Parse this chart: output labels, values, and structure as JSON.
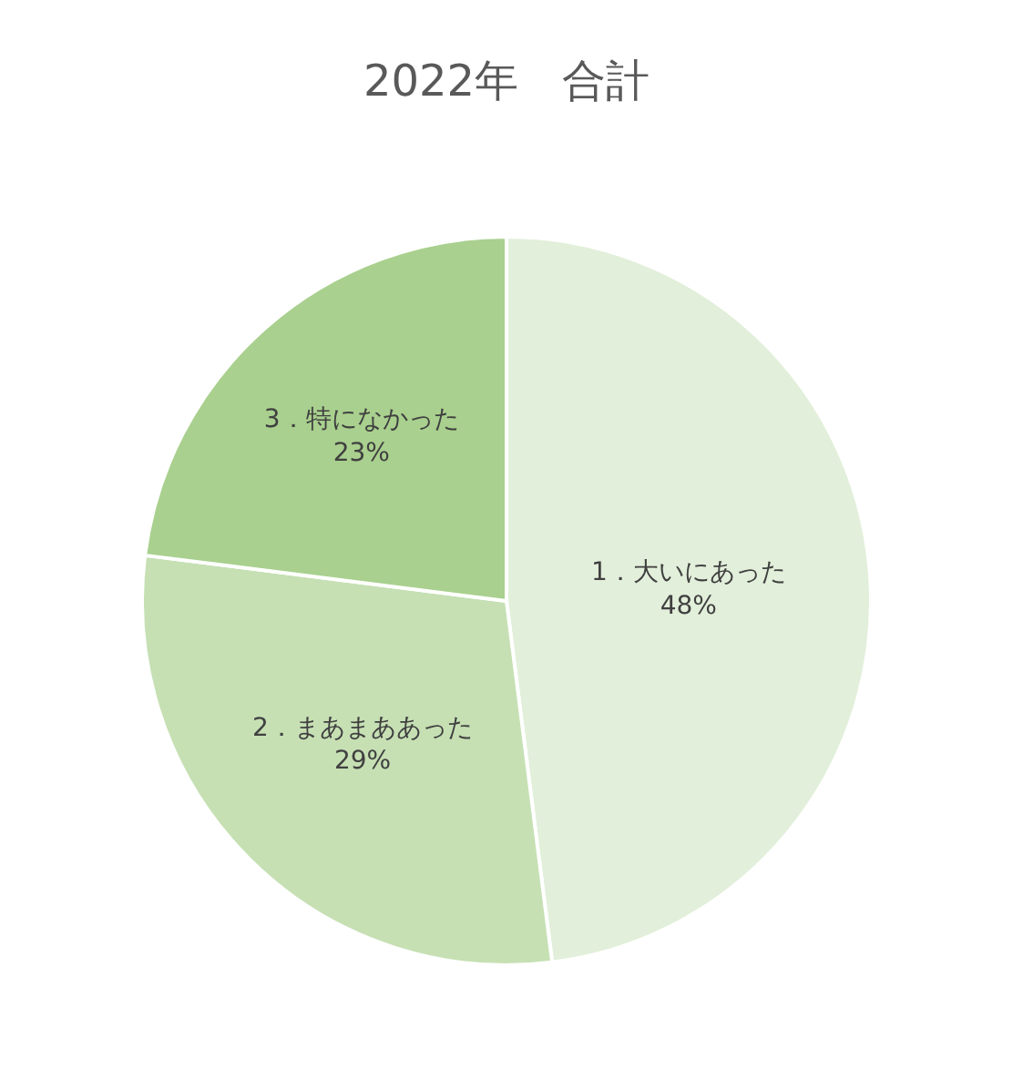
{
  "chart_data": {
    "type": "pie",
    "title": "2022年　合計",
    "categories": [
      "1．大いにあった",
      "2．まあまああった",
      "3．特になかった"
    ],
    "values": [
      48,
      29,
      23
    ],
    "value_labels": [
      "48%",
      "29%",
      "23%"
    ],
    "colors": [
      "#e2efda",
      "#c6e0b4",
      "#a9d08e"
    ],
    "legend": false
  }
}
